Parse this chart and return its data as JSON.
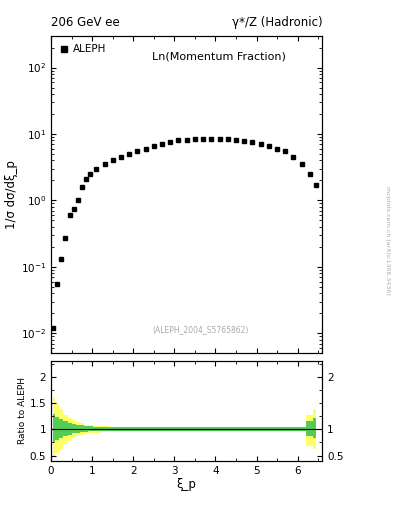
{
  "title_left": "206 GeV ee",
  "title_right": "γ*/Z (Hadronic)",
  "annotation": "Ln(Momentum Fraction)",
  "ref_label": "(ALEPH_2004_S5765862)",
  "legend_label": "ALEPH",
  "ylabel_main": "1/σ dσ/dξ_p",
  "ylabel_ratio": "Ratio to ALEPH",
  "xlabel": "ξ_p",
  "side_label": "mcplots.cern.ch [arXiv:1306.3436]",
  "data_x": [
    0.05,
    0.15,
    0.25,
    0.35,
    0.45,
    0.55,
    0.65,
    0.75,
    0.85,
    0.95,
    1.1,
    1.3,
    1.5,
    1.7,
    1.9,
    2.1,
    2.3,
    2.5,
    2.7,
    2.9,
    3.1,
    3.3,
    3.5,
    3.7,
    3.9,
    4.1,
    4.3,
    4.5,
    4.7,
    4.9,
    5.1,
    5.3,
    5.5,
    5.7,
    5.9,
    6.1,
    6.3,
    6.45
  ],
  "data_y": [
    0.012,
    0.055,
    0.13,
    0.27,
    0.6,
    0.75,
    1.0,
    1.6,
    2.1,
    2.5,
    3.0,
    3.5,
    4.0,
    4.5,
    5.0,
    5.5,
    6.0,
    6.5,
    7.0,
    7.5,
    8.0,
    8.2,
    8.3,
    8.5,
    8.5,
    8.5,
    8.3,
    8.0,
    7.8,
    7.5,
    7.0,
    6.5,
    6.0,
    5.5,
    4.5,
    3.5,
    2.5,
    1.7
  ],
  "ylim_main": [
    0.005,
    300
  ],
  "ylim_ratio": [
    0.4,
    2.3
  ],
  "xlim": [
    0.0,
    6.6
  ],
  "xticks": [
    0,
    1,
    2,
    3,
    4,
    5,
    6
  ],
  "ratio_band_yellow_lo": [
    0.48,
    0.54,
    0.62,
    0.72,
    0.78,
    0.83,
    0.87,
    0.89,
    0.91,
    0.92,
    0.93,
    0.94,
    0.94,
    0.95,
    0.95,
    0.95,
    0.95,
    0.95,
    0.95,
    0.95,
    0.95,
    0.95,
    0.95,
    0.95,
    0.95,
    0.95,
    0.95,
    0.95,
    0.95,
    0.95,
    0.95,
    0.95,
    0.95,
    0.95,
    0.95,
    0.95,
    0.68,
    0.62
  ],
  "ratio_band_yellow_hi": [
    1.62,
    1.48,
    1.38,
    1.28,
    1.22,
    1.17,
    1.13,
    1.11,
    1.09,
    1.08,
    1.07,
    1.06,
    1.05,
    1.05,
    1.05,
    1.05,
    1.05,
    1.05,
    1.05,
    1.05,
    1.05,
    1.05,
    1.05,
    1.05,
    1.05,
    1.05,
    1.05,
    1.05,
    1.05,
    1.05,
    1.05,
    1.05,
    1.05,
    1.05,
    1.05,
    1.05,
    1.28,
    1.38
  ],
  "ratio_band_green_lo": [
    0.76,
    0.8,
    0.84,
    0.87,
    0.9,
    0.92,
    0.93,
    0.94,
    0.95,
    0.96,
    0.96,
    0.97,
    0.97,
    0.97,
    0.97,
    0.97,
    0.97,
    0.97,
    0.97,
    0.97,
    0.97,
    0.97,
    0.97,
    0.97,
    0.97,
    0.97,
    0.97,
    0.97,
    0.97,
    0.97,
    0.97,
    0.97,
    0.97,
    0.97,
    0.97,
    0.97,
    0.87,
    0.83
  ],
  "ratio_band_green_hi": [
    1.3,
    1.24,
    1.19,
    1.15,
    1.12,
    1.1,
    1.09,
    1.08,
    1.07,
    1.06,
    1.05,
    1.04,
    1.04,
    1.04,
    1.04,
    1.04,
    1.04,
    1.04,
    1.04,
    1.04,
    1.04,
    1.04,
    1.04,
    1.04,
    1.04,
    1.04,
    1.04,
    1.04,
    1.04,
    1.04,
    1.04,
    1.04,
    1.04,
    1.04,
    1.04,
    1.04,
    1.16,
    1.22
  ],
  "marker_color": "black",
  "marker_style": "s",
  "marker_size": 3.5,
  "yellow_color": "#ffff66",
  "green_color": "#55cc55",
  "ratio_line_color": "black",
  "tick_labelsize": 7.5,
  "axis_labelsize": 8.5,
  "title_fontsize": 8.5
}
